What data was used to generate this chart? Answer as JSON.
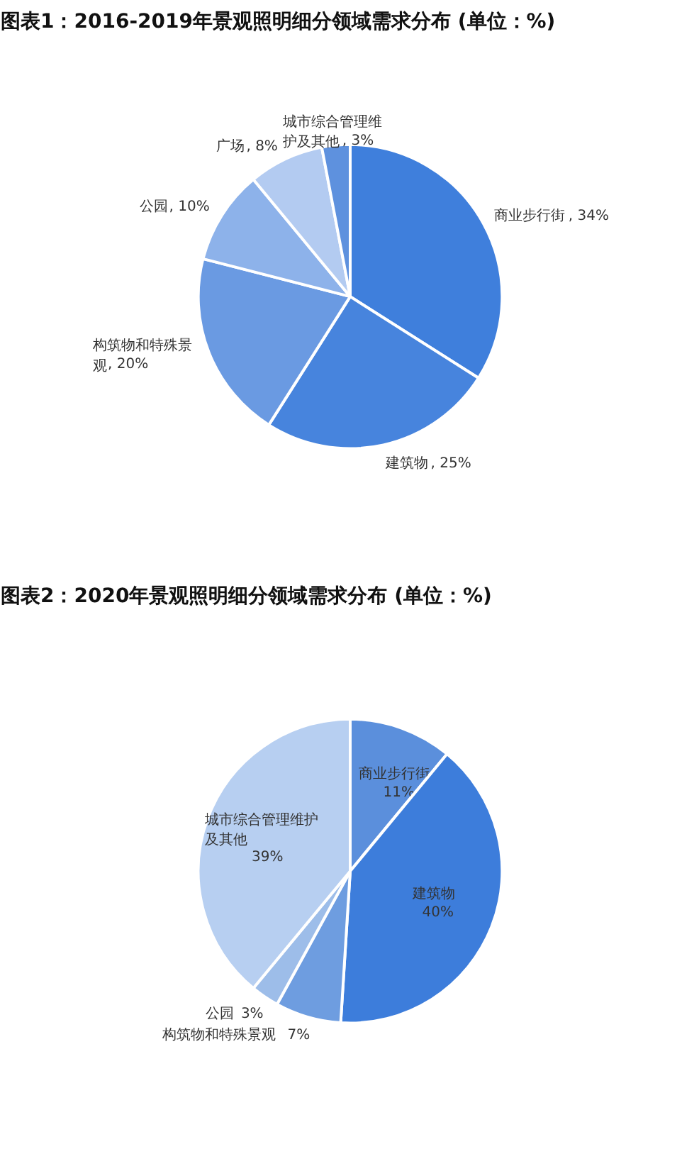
{
  "chart_data": [
    {
      "type": "pie",
      "title": "图表1：2016-2019年景观照明细分领域需求分布 (单位：%)",
      "categories": [
        "商业步行街",
        "建筑物",
        "构筑物和特殊景观",
        "公园",
        "广场",
        "城市综合管理维护及其他"
      ],
      "values": [
        34,
        25,
        20,
        10,
        8,
        3
      ],
      "colors": [
        "#3f7fdc",
        "#4784dd",
        "#6a9ae2",
        "#8db2ea",
        "#b3cbf1",
        "#5e91de"
      ],
      "value_labels": [
        ", 34%",
        ", 25%",
        ", 20%",
        ", 10%",
        ", 8%",
        ", 3%"
      ]
    },
    {
      "type": "pie",
      "title": "图表2：2020年景观照明细分领域需求分布 (单位：%)",
      "categories": [
        "商业步行街",
        "建筑物",
        "构筑物和特殊景观",
        "公园",
        "城市综合管理维护及其他"
      ],
      "values": [
        11,
        40,
        7,
        3,
        39
      ],
      "colors": [
        "#5b8fdc",
        "#3d7ddb",
        "#6e9de0",
        "#9dbde9",
        "#b7cff1"
      ],
      "value_labels": [
        "11%",
        "40%",
        "7%",
        "3%",
        "39%"
      ]
    }
  ]
}
